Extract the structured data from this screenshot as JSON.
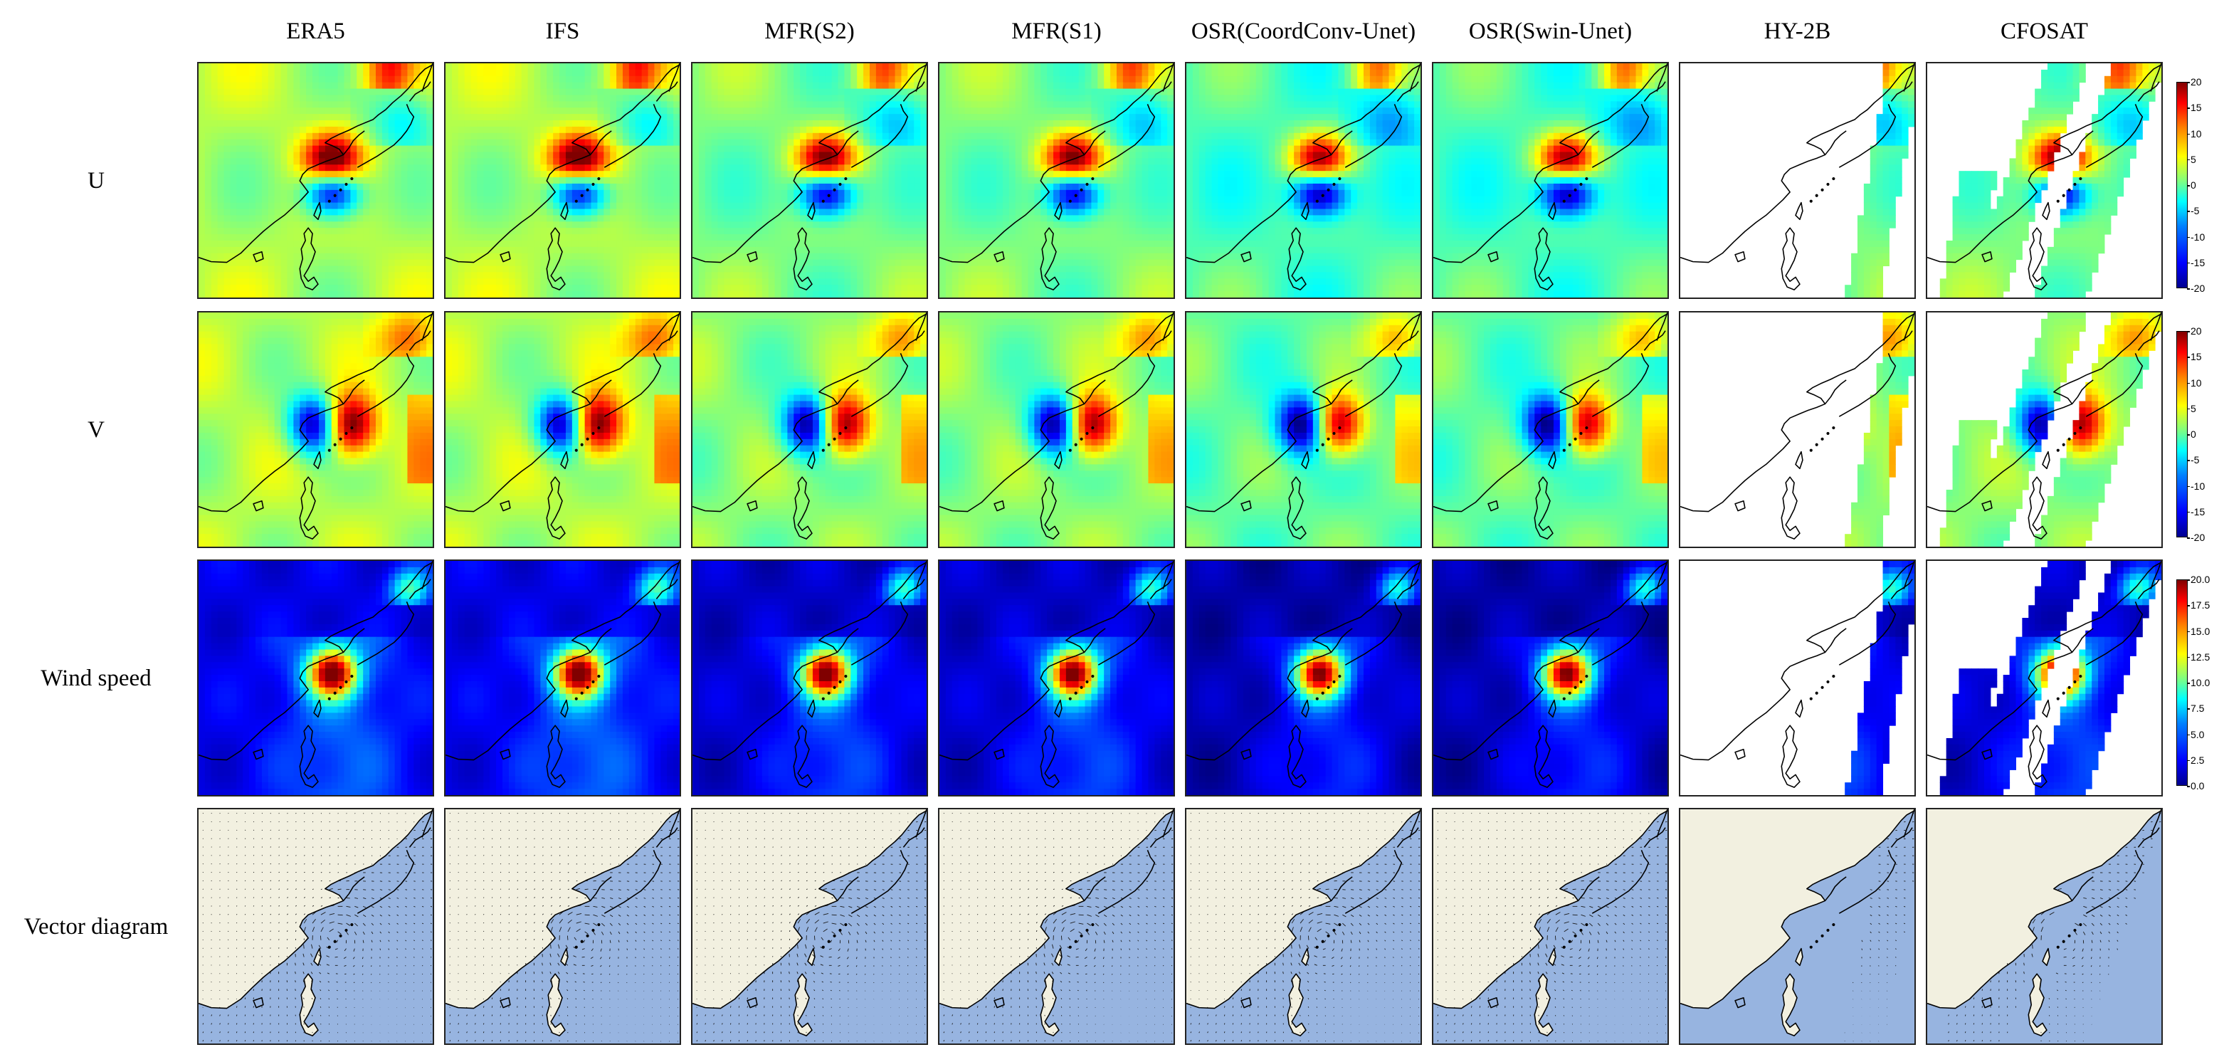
{
  "figure": {
    "column_titles": [
      "ERA5",
      "IFS",
      "MFR(S2)",
      "MFR(S1)",
      "OSR(CoordConv-Unet)",
      "OSR(Swin-Unet)",
      "HY-2B",
      "CFOSAT"
    ],
    "row_titles": [
      "U",
      "V",
      "Wind speed",
      "Vector diagram"
    ],
    "colorbars": [
      {
        "row": "U",
        "ticks": [
          "20",
          "15",
          "10",
          "5",
          "0",
          "-5",
          "-10",
          "-15",
          "-20"
        ]
      },
      {
        "row": "V",
        "ticks": [
          "20",
          "15",
          "10",
          "5",
          "0",
          "-5",
          "-10",
          "-15",
          "-20"
        ]
      },
      {
        "row": "Wind speed",
        "ticks": [
          "20.0",
          "17.5",
          "15.0",
          "12.5",
          "10.0",
          "7.5",
          "5.0",
          "2.5",
          "0.0"
        ]
      }
    ],
    "colors": {
      "jet_dark_blue": "#00008f",
      "jet_blue": "#0050ff",
      "jet_cyan": "#00e5ff",
      "jet_green": "#8cf08c",
      "jet_yellow": "#ffe600",
      "jet_orange": "#ff8000",
      "jet_red": "#e00000",
      "ocean_vector": "#97b4e0",
      "land_vector": "#f2f0e0",
      "coastline": "#000000"
    }
  }
}
